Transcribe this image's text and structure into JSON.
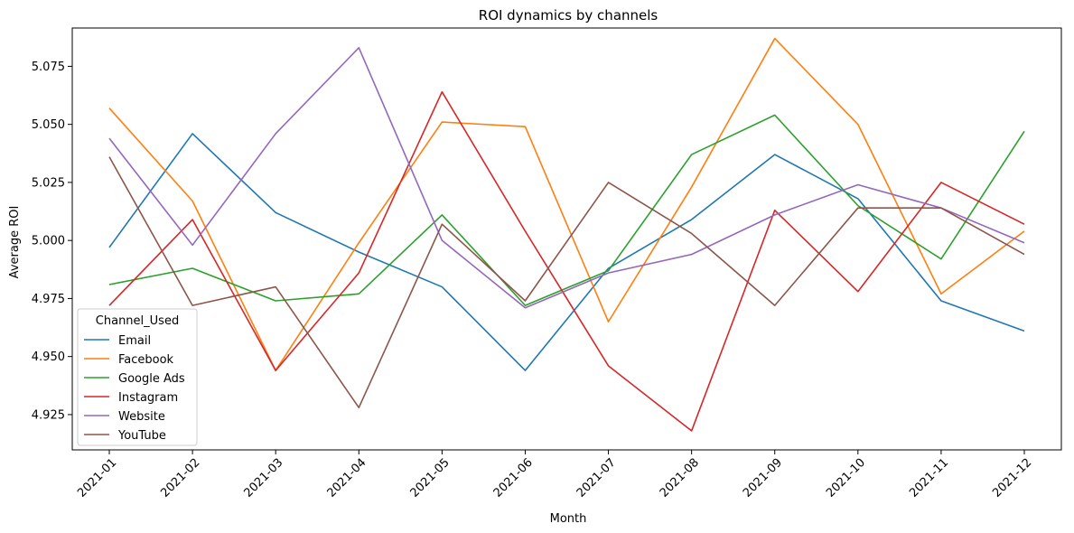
{
  "chart_data": {
    "type": "line",
    "title": "ROI dynamics by channels",
    "xlabel": "Month",
    "ylabel": "Average ROI",
    "categories": [
      "2021-01",
      "2021-02",
      "2021-03",
      "2021-04",
      "2021-05",
      "2021-06",
      "2021-07",
      "2021-08",
      "2021-09",
      "2021-10",
      "2021-11",
      "2021-12"
    ],
    "ylim": [
      4.9098,
      5.0915
    ],
    "yticks": [
      "4.925",
      "4.950",
      "4.975",
      "5.000",
      "5.025",
      "5.050",
      "5.075"
    ],
    "grid": false,
    "legend": {
      "title": "Channel_Used",
      "placement": "lower-left"
    },
    "series": [
      {
        "name": "Email",
        "color": "#1f77b4",
        "values": [
          4.997,
          5.046,
          5.012,
          4.995,
          4.98,
          4.944,
          4.988,
          5.009,
          5.037,
          5.018,
          4.974,
          4.961
        ]
      },
      {
        "name": "Facebook",
        "color": "#ff7f0e",
        "values": [
          5.057,
          5.017,
          4.944,
          4.999,
          5.051,
          5.049,
          4.965,
          5.023,
          5.087,
          5.05,
          4.977,
          5.004
        ]
      },
      {
        "name": "Google Ads",
        "color": "#2ca02c",
        "values": [
          4.981,
          4.988,
          4.974,
          4.977,
          5.011,
          4.972,
          4.987,
          5.037,
          5.054,
          5.015,
          4.992,
          5.047
        ]
      },
      {
        "name": "Instagram",
        "color": "#d62728",
        "values": [
          4.972,
          5.009,
          4.944,
          4.986,
          5.064,
          5.004,
          4.946,
          4.918,
          5.013,
          4.978,
          5.025,
          5.007
        ]
      },
      {
        "name": "Website",
        "color": "#9467bd",
        "values": [
          5.044,
          4.998,
          5.046,
          5.083,
          5.0,
          4.971,
          4.986,
          4.994,
          5.011,
          5.024,
          5.014,
          4.999
        ]
      },
      {
        "name": "YouTube",
        "color": "#8c564b",
        "values": [
          5.036,
          4.972,
          4.98,
          4.928,
          5.007,
          4.974,
          5.025,
          5.003,
          4.972,
          5.014,
          5.014,
          4.994
        ]
      }
    ]
  }
}
